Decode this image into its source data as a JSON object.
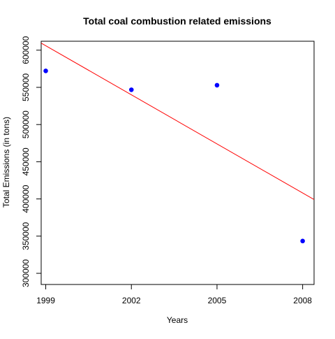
{
  "chart_data": {
    "type": "scatter",
    "title": "Total coal combustion related emissions",
    "xlabel": "Years",
    "ylabel": "Total Emissions (in tons)",
    "xlim": [
      1998.84,
      2008.4
    ],
    "ylim": [
      285000,
      612000
    ],
    "x_ticks": [
      {
        "value": 1999,
        "label": "1999"
      },
      {
        "value": 2002,
        "label": "2002"
      },
      {
        "value": 2005,
        "label": "2005"
      },
      {
        "value": 2008,
        "label": "2008"
      }
    ],
    "y_ticks": [
      {
        "value": 300000,
        "label": "300000"
      },
      {
        "value": 350000,
        "label": "350000"
      },
      {
        "value": 400000,
        "label": "400000"
      },
      {
        "value": 450000,
        "label": "450000"
      },
      {
        "value": 500000,
        "label": "500000"
      },
      {
        "value": 550000,
        "label": "550000"
      },
      {
        "value": 600000,
        "label": "600000"
      }
    ],
    "series": [
      {
        "x": [
          1999,
          2002,
          2005,
          2008
        ],
        "y": [
          572126,
          546789,
          552881,
          343432
        ],
        "color": "#0000ff",
        "marker": "filled-circle"
      }
    ],
    "trendline": {
      "type": "linear-fit",
      "intercept_at_1999": 606000,
      "slope_per_year": -22000,
      "color": "#ff0000"
    },
    "grid": false,
    "legend": "none"
  }
}
